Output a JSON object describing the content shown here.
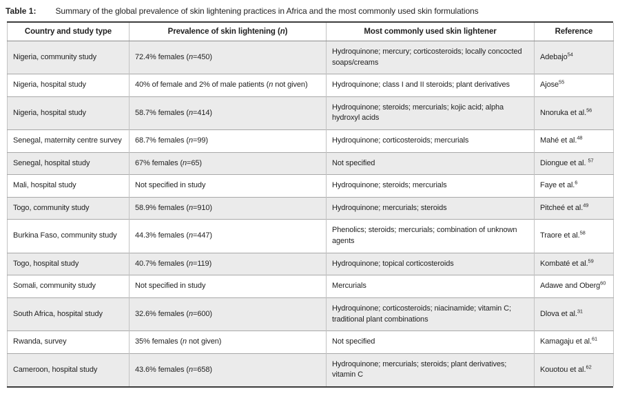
{
  "caption": {
    "label": "Table 1:",
    "text": "Summary of the global prevalence of skin lightening practices in Africa and the most commonly used skin formulations"
  },
  "table": {
    "headers": [
      {
        "segments": [
          {
            "t": "Country and study type"
          }
        ]
      },
      {
        "segments": [
          {
            "t": "Prevalence of skin lightening ("
          },
          {
            "t": "n",
            "i": true
          },
          {
            "t": ")"
          }
        ]
      },
      {
        "segments": [
          {
            "t": "Most commonly used skin lightener"
          }
        ]
      },
      {
        "segments": [
          {
            "t": "Reference"
          }
        ]
      }
    ],
    "rows": [
      {
        "country": "Nigeria, community study",
        "prevalence": [
          {
            "t": "72.4% females ("
          },
          {
            "t": "n",
            "i": true
          },
          {
            "t": "=450)"
          }
        ],
        "lightener": "Hydroquinone; mercury; corticosteroids; locally concocted soaps/creams",
        "reference": [
          {
            "t": "Adebajo"
          },
          {
            "t": "54",
            "s": true
          }
        ]
      },
      {
        "country": "Nigeria, hospital study",
        "prevalence": [
          {
            "t": "40% of female and 2% of male patients ("
          },
          {
            "t": "n",
            "i": true
          },
          {
            "t": " not given)"
          }
        ],
        "lightener": "Hydroquinone; class I and II steroids; plant derivatives",
        "reference": [
          {
            "t": "Ajose"
          },
          {
            "t": "55",
            "s": true
          }
        ]
      },
      {
        "country": "Nigeria, hospital study",
        "prevalence": [
          {
            "t": "58.7% females ("
          },
          {
            "t": "n",
            "i": true
          },
          {
            "t": "=414)"
          }
        ],
        "lightener": "Hydroquinone; steroids; mercurials; kojic acid; alpha hydroxyl acids",
        "reference": [
          {
            "t": "Nnoruka et al."
          },
          {
            "t": "56",
            "s": true
          }
        ]
      },
      {
        "country": "Senegal, maternity centre survey",
        "prevalence": [
          {
            "t": "68.7% females ("
          },
          {
            "t": "n",
            "i": true
          },
          {
            "t": "=99)"
          }
        ],
        "lightener": "Hydroquinone; corticosteroids; mercurials",
        "reference": [
          {
            "t": "Mahé et al."
          },
          {
            "t": "48",
            "s": true
          }
        ]
      },
      {
        "country": "Senegal, hospital study",
        "prevalence": [
          {
            "t": "67% females ("
          },
          {
            "t": "n",
            "i": true
          },
          {
            "t": "=65)"
          }
        ],
        "lightener": "Not specified",
        "reference": [
          {
            "t": "Diongue et al. "
          },
          {
            "t": "57",
            "s": true
          }
        ]
      },
      {
        "country": "Mali, hospital study",
        "prevalence": [
          {
            "t": "Not specified in study"
          }
        ],
        "lightener": "Hydroquinone; steroids; mercurials",
        "reference": [
          {
            "t": "Faye et al."
          },
          {
            "t": "6",
            "s": true
          }
        ]
      },
      {
        "country": "Togo, community study",
        "prevalence": [
          {
            "t": "58.9% females ("
          },
          {
            "t": "n",
            "i": true
          },
          {
            "t": "=910)"
          }
        ],
        "lightener": "Hydroquinone; mercurials; steroids",
        "reference": [
          {
            "t": "Pitcheé et al."
          },
          {
            "t": "49",
            "s": true
          }
        ]
      },
      {
        "country": "Burkina Faso, community study",
        "prevalence": [
          {
            "t": "44.3% females ("
          },
          {
            "t": "n",
            "i": true
          },
          {
            "t": "=447)"
          }
        ],
        "lightener": "Phenolics; steroids; mercurials; combination of unknown agents",
        "reference": [
          {
            "t": "Traore et al."
          },
          {
            "t": "58",
            "s": true
          }
        ]
      },
      {
        "country": "Togo, hospital study",
        "prevalence": [
          {
            "t": "40.7% females ("
          },
          {
            "t": "n",
            "i": true
          },
          {
            "t": "=119)"
          }
        ],
        "lightener": "Hydroquinone; topical corticosteroids",
        "reference": [
          {
            "t": "Kombaté et al."
          },
          {
            "t": "59",
            "s": true
          }
        ]
      },
      {
        "country": "Somali, community study",
        "prevalence": [
          {
            "t": "Not specified in study"
          }
        ],
        "lightener": "Mercurials",
        "reference": [
          {
            "t": "Adawe and Oberg"
          },
          {
            "t": "60",
            "s": true
          }
        ]
      },
      {
        "country": "South Africa, hospital study",
        "prevalence": [
          {
            "t": "32.6% females ("
          },
          {
            "t": "n",
            "i": true
          },
          {
            "t": "=600)"
          }
        ],
        "lightener": "Hydroquinone; corticosteroids; niacinamide; vitamin C; traditional plant combinations",
        "reference": [
          {
            "t": "Dlova et al."
          },
          {
            "t": "31",
            "s": true
          }
        ]
      },
      {
        "country": "Rwanda, survey",
        "prevalence": [
          {
            "t": "35% females ("
          },
          {
            "t": "n",
            "i": true
          },
          {
            "t": " not given)"
          }
        ],
        "lightener": "Not specified",
        "reference": [
          {
            "t": "Kamagaju et al."
          },
          {
            "t": "61",
            "s": true
          }
        ]
      },
      {
        "country": "Cameroon, hospital study",
        "prevalence": [
          {
            "t": "43.6% females ("
          },
          {
            "t": "n",
            "i": true
          },
          {
            "t": "=658)"
          }
        ],
        "lightener": "Hydroquinone; mercurials; steroids; plant derivatives; vitamin C",
        "reference": [
          {
            "t": "Kouotou et al."
          },
          {
            "t": "62",
            "s": true
          }
        ]
      }
    ]
  },
  "colors": {
    "stripe": "#ebebeb",
    "rule_dark": "#3b3b3b",
    "border_horizontal": "#a8a8a8",
    "border_vertical": "#c2c2c2",
    "text": "#1f1f1f"
  }
}
